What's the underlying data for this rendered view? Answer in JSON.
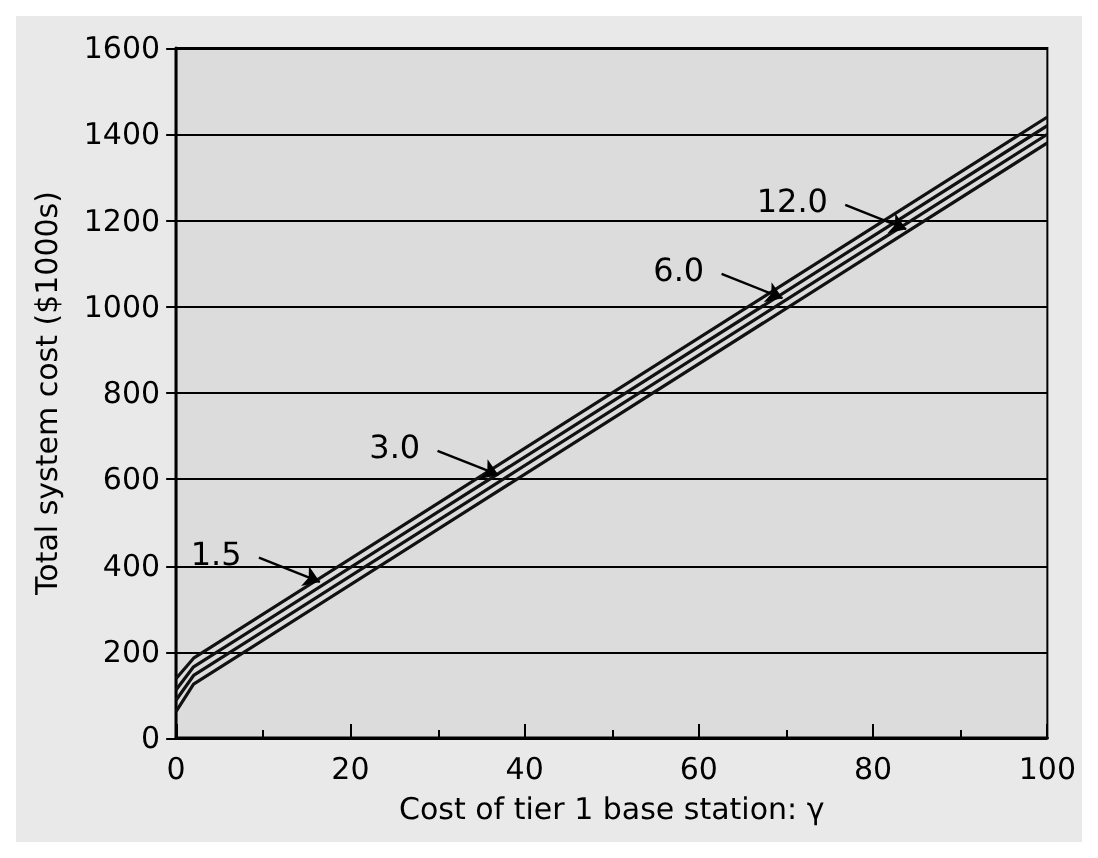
{
  "chart_data": {
    "type": "line",
    "xlabel": "Cost of tier 1 base station: γ",
    "ylabel": "Total system cost ($1000s)",
    "x": [
      0,
      2,
      100
    ],
    "series": [
      {
        "color": "#111111",
        "values": [
          138,
          185,
          1440
        ]
      },
      {
        "color": "#111111",
        "values": [
          112,
          165,
          1420
        ]
      },
      {
        "color": "#111111",
        "values": [
          88,
          145,
          1400
        ]
      },
      {
        "color": "#111111",
        "values": [
          62,
          125,
          1380
        ]
      }
    ],
    "xlim": [
      0,
      100
    ],
    "xticks": [
      0,
      20,
      40,
      60,
      80,
      100
    ],
    "ylim": [
      0,
      1600
    ],
    "yticks": [
      0,
      200,
      400,
      600,
      800,
      1000,
      1200,
      1400,
      1600
    ],
    "grid": "y",
    "marker": "none",
    "line_style": "solid",
    "annotations": [
      {
        "text": "1.5",
        "x": 16.5,
        "y": 362
      },
      {
        "text": "3.0",
        "x": 37,
        "y": 610
      },
      {
        "text": "6.0",
        "x": 69.6,
        "y": 1020
      },
      {
        "text": "12.0",
        "x": 83.8,
        "y": 1180
      }
    ]
  }
}
